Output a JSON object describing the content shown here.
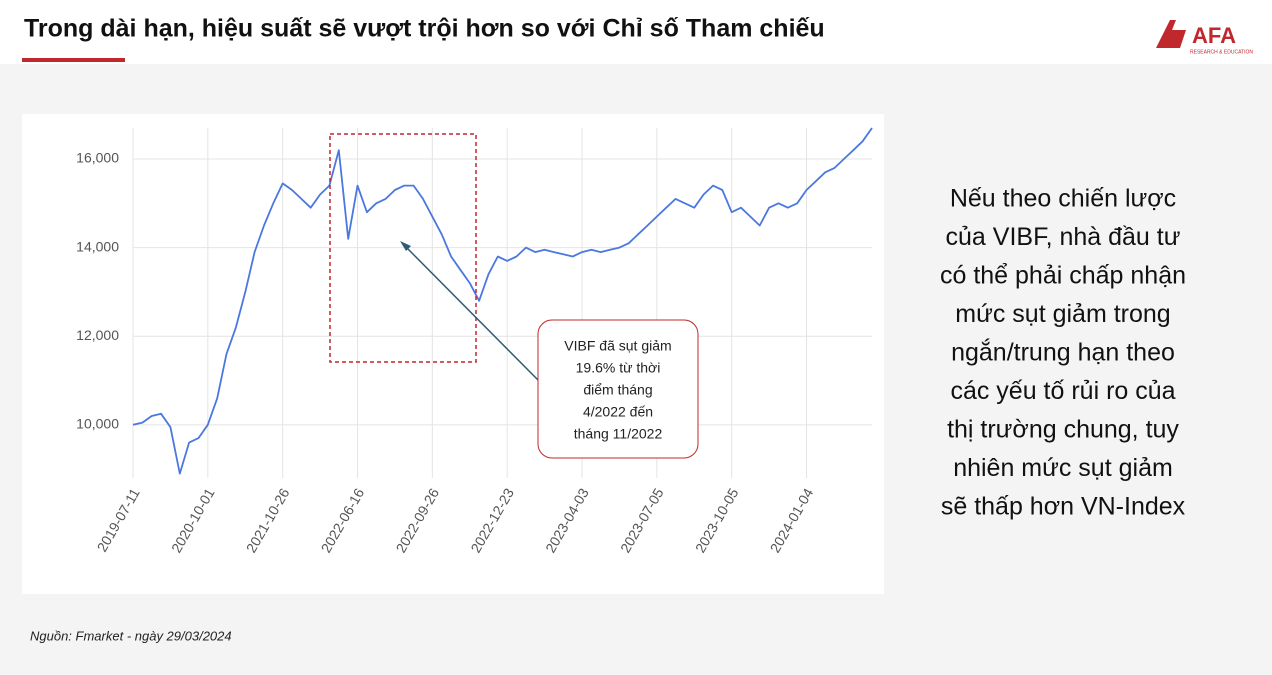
{
  "header": {
    "title": "Trong dài hạn, hiệu suất sẽ vượt trội hơn so với Chỉ số Tham chiếu",
    "logo": "AFA",
    "logo_sub": "RESEARCH & EDUCATION"
  },
  "chart_data": {
    "type": "line",
    "categories": [
      "2019-07-11",
      null,
      null,
      null,
      null,
      null,
      null,
      null,
      "2020-10-01",
      null,
      null,
      null,
      null,
      null,
      null,
      null,
      "2021-10-26",
      null,
      null,
      null,
      null,
      null,
      null,
      null,
      "2022-06-16",
      null,
      null,
      null,
      null,
      null,
      null,
      null,
      "2022-09-26",
      null,
      null,
      null,
      null,
      null,
      null,
      null,
      "2022-12-23",
      null,
      null,
      null,
      null,
      null,
      null,
      null,
      "2023-04-03",
      null,
      null,
      null,
      null,
      null,
      null,
      null,
      "2023-07-05",
      null,
      null,
      null,
      null,
      null,
      null,
      null,
      "2023-10-05",
      null,
      null,
      null,
      null,
      null,
      null,
      null,
      "2024-01-04",
      null,
      null,
      null,
      null,
      null,
      null,
      null
    ],
    "series": [
      {
        "name": "VIBF",
        "color": "#4a78e0",
        "values": [
          10000,
          10050,
          10200,
          10250,
          9950,
          8900,
          9600,
          9700,
          10000,
          10600,
          11600,
          12200,
          13000,
          13900,
          14500,
          15000,
          15450,
          15300,
          15100,
          14900,
          15200,
          15400,
          16200,
          14200,
          15400,
          14800,
          15000,
          15100,
          15300,
          15400,
          15400,
          15100,
          14700,
          14300,
          13800,
          13500,
          13200,
          12800,
          13400,
          13800,
          13700,
          13800,
          14000,
          13900,
          13950,
          13900,
          13850,
          13800,
          13900,
          13950,
          13900,
          13950,
          14000,
          14100,
          14300,
          14500,
          14700,
          14900,
          15100,
          15000,
          14900,
          15200,
          15400,
          15300,
          14800,
          14900,
          14700,
          14500,
          14900,
          15000,
          14900,
          15000,
          15300,
          15500,
          15700,
          15800,
          16000,
          16200,
          16400,
          16700
        ]
      }
    ],
    "ylim": [
      8800,
      16700
    ],
    "yticks": [
      {
        "value": 10000,
        "label": "10,000"
      },
      {
        "value": 12000,
        "label": "12,000"
      },
      {
        "value": 14000,
        "label": "14,000"
      },
      {
        "value": 16000,
        "label": "16,000"
      }
    ],
    "grid": true,
    "annotation": [
      "VIBF đã sụt giảm",
      "19.6% từ thời",
      "điểm tháng",
      "4/2022 đến",
      "tháng 11/2022"
    ]
  },
  "side_text": [
    "Nếu theo chiến lược",
    "của VIBF, nhà đầu tư",
    "có thể phải chấp nhận",
    "mức sụt giảm trong",
    "ngắn/trung hạn theo",
    "các yếu tố rủi ro của",
    "thị trường chung, tuy",
    "nhiên mức sụt giảm",
    "sẽ thấp hơn VN-Index"
  ],
  "source": "Nguồn: Fmarket - ngày 29/03/2024"
}
